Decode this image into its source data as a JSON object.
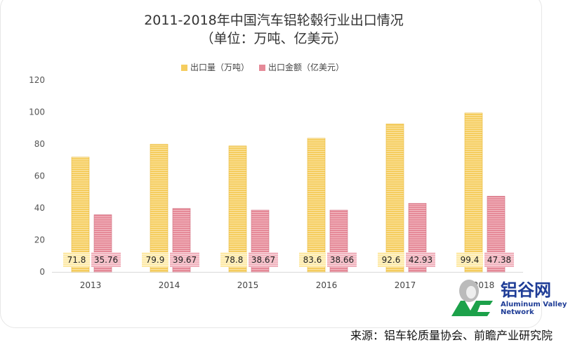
{
  "chart_data": {
    "type": "bar",
    "title": "2011-2018年中国汽车铝轮毂行业出口情况",
    "subtitle": "（单位：万吨、亿美元）",
    "categories": [
      "2013",
      "2014",
      "2015",
      "2016",
      "2017",
      "2018"
    ],
    "series": [
      {
        "name": "出口量（万吨）",
        "color": "#f5cd5f",
        "values": [
          71.8,
          79.9,
          78.8,
          83.6,
          92.6,
          99.4
        ],
        "labels": [
          "71.8",
          "79.9",
          "78.8",
          "83.6",
          "92.6",
          "99.4"
        ]
      },
      {
        "name": "出口金额（亿美元）",
        "color": "#e58a98",
        "values": [
          35.76,
          39.67,
          38.67,
          38.66,
          42.93,
          47.38
        ],
        "labels": [
          "35.76",
          "39.67",
          "38.67",
          "38.66",
          "42.93",
          "47.38"
        ]
      }
    ],
    "ylim": [
      0,
      120
    ],
    "yticks": [
      "0",
      "20",
      "40",
      "60",
      "80",
      "100",
      "120"
    ],
    "legend_position": "top",
    "grid": false
  },
  "source": "来源：铝车轮质量协会、前瞻产业研究院",
  "logo": {
    "cn": "铝谷网",
    "en1": "Aluminum Valley",
    "en2": "Network",
    "mark": "AVC"
  }
}
